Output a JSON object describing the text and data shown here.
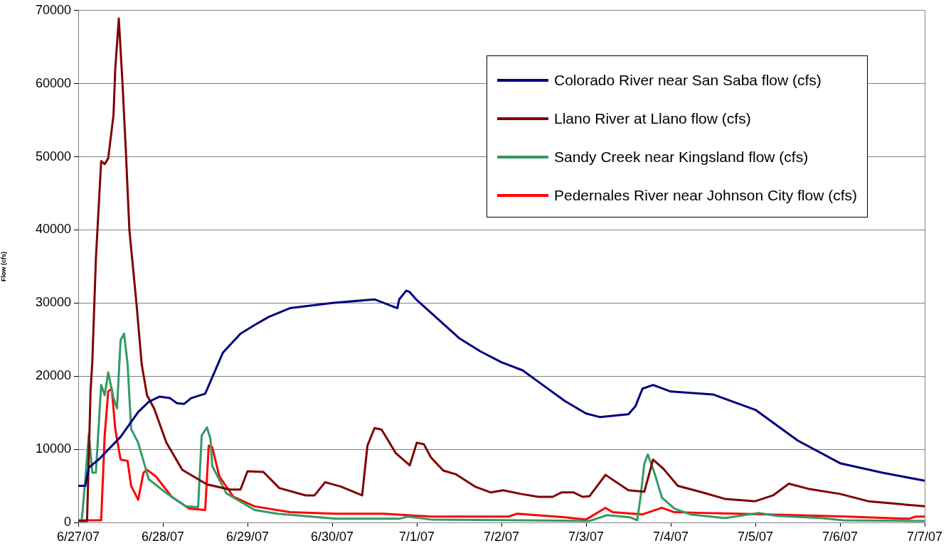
{
  "chart_data": {
    "type": "line",
    "ylabel": "Flow (cfs)",
    "xlim": [
      "--06-27",
      "--07-07"
    ],
    "xticks": [
      {
        "value": "--06-27",
        "label": "6/27/07"
      },
      {
        "value": "--06-28",
        "label": "6/28/07"
      },
      {
        "value": "--06-29",
        "label": "6/29/07"
      },
      {
        "value": "--06-30",
        "label": "6/30/07"
      },
      {
        "value": "--07-01",
        "label": "7/1/07"
      },
      {
        "value": "--07-02",
        "label": "7/2/07"
      },
      {
        "value": "--07-03",
        "label": "7/3/07"
      },
      {
        "value": "--07-04",
        "label": "7/4/07"
      },
      {
        "value": "--07-05",
        "label": "7/5/07"
      },
      {
        "value": "--07-06",
        "label": "7/6/07"
      },
      {
        "value": "--07-07",
        "label": "7/7/07"
      }
    ],
    "ylim": [
      0,
      70000
    ],
    "yticks": [
      0,
      10000,
      20000,
      30000,
      40000,
      50000,
      60000,
      70000
    ],
    "grid": "y",
    "legend": "top right",
    "line_style": "solid",
    "series": [
      {
        "name": "Colorado River near San Saba flow (cfs)",
        "color": "#000080",
        "x": [
          "--06-27T00:00",
          "--06-27T02:00",
          "--06-27T03:00",
          "--06-27T06:00",
          "--06-27T12:00",
          "--06-27T17:00",
          "--06-27T20:00",
          "--06-27T23:00",
          "--06-28T02:00",
          "--06-28T04:00",
          "--06-28T06:00",
          "--06-28T08:00",
          "--06-28T12:00",
          "--06-28T17:00",
          "--06-28T22:00",
          "--06-29T02:00",
          "--06-29T06:00",
          "--06-29T12:00",
          "--06-30T00:00",
          "--06-30T12:00",
          "--06-30T18:30",
          "--06-30T19:00",
          "--06-30T21:00",
          "--06-30T22:00",
          "--07-01T00:00",
          "--07-01T06:00",
          "--07-01T12:00",
          "--07-01T18:00",
          "--07-02T00:00",
          "--07-02T06:00",
          "--07-02T12:00",
          "--07-02T18:00",
          "--07-03T00:00",
          "--07-03T04:00",
          "--07-03T12:00",
          "--07-03T14:00",
          "--07-03T16:00",
          "--07-03T19:00",
          "--07-04T00:00",
          "--07-04T12:00",
          "--07-05T00:00",
          "--07-05T12:00",
          "--07-06T00:00",
          "--07-06T12:00",
          "--07-07T00:00"
        ],
        "values": [
          5000,
          5000,
          7500,
          8700,
          11700,
          15100,
          16500,
          17200,
          17000,
          16300,
          16200,
          17000,
          17600,
          23200,
          25800,
          27000,
          28100,
          29300,
          30000,
          30500,
          29300,
          30500,
          31700,
          31500,
          30400,
          27800,
          25200,
          23400,
          21900,
          20800,
          18700,
          16600,
          14900,
          14400,
          14800,
          15900,
          18300,
          18800,
          17900,
          17500,
          15400,
          11200,
          8100,
          6800,
          5700
        ]
      },
      {
        "name": "Llano River at Llano flow (cfs)",
        "color": "#800000",
        "x": [
          "--06-27T00:00",
          "--06-27T02:30",
          "--06-27T03:30",
          "--06-27T04:00",
          "--06-27T05:00",
          "--06-27T06:30",
          "--06-27T07:30",
          "--06-27T08:30",
          "--06-27T10:00",
          "--06-27T10:30",
          "--06-27T11:30",
          "--06-27T12:30",
          "--06-27T13:30",
          "--06-27T14:30",
          "--06-27T16:30",
          "--06-27T18:00",
          "--06-27T19:30",
          "--06-27T21:30",
          "--06-28T01:00",
          "--06-28T05:30",
          "--06-28T12:30",
          "--06-28T19:00",
          "--06-28T22:00",
          "--06-29T00:00",
          "--06-29T04:30",
          "--06-29T09:00",
          "--06-29T16:30",
          "--06-29T19:00",
          "--06-29T22:00",
          "--06-30T02:30",
          "--06-30T08:30",
          "--06-30T10:00",
          "--06-30T12:00",
          "--06-30T14:00",
          "--06-30T18:00",
          "--06-30T22:00",
          "--07-01T00:00",
          "--07-01T02:00",
          "--07-01T04:00",
          "--07-01T07:30",
          "--07-01T11:00",
          "--07-01T16:30",
          "--07-01T21:00",
          "--07-02T00:30",
          "--07-02T05:30",
          "--07-02T10:30",
          "--07-02T14:30",
          "--07-02T17:00",
          "--07-02T20:30",
          "--07-02T23:00",
          "--07-03T01:00",
          "--07-03T05:30",
          "--07-03T12:00",
          "--07-03T16:30",
          "--07-03T19:00",
          "--07-03T22:00",
          "--07-04T02:00",
          "--07-04T09:00",
          "--07-04T15:30",
          "--07-05T00:00",
          "--07-05T05:00",
          "--07-05T09:30",
          "--07-05T15:00",
          "--07-06T00:00",
          "--07-06T08:00",
          "--07-07T00:00"
        ],
        "values": [
          200,
          200,
          18000,
          22000,
          36000,
          49400,
          49000,
          49800,
          55700,
          62000,
          68900,
          60500,
          50800,
          40000,
          30000,
          21600,
          17400,
          15600,
          10900,
          7200,
          5200,
          4500,
          4500,
          7000,
          6900,
          4700,
          3700,
          3700,
          5500,
          4900,
          3700,
          10500,
          12900,
          12700,
          9500,
          7800,
          10900,
          10700,
          8900,
          7100,
          6600,
          4900,
          4100,
          4400,
          3900,
          3500,
          3500,
          4100,
          4100,
          3500,
          3600,
          6500,
          4400,
          4200,
          8600,
          7300,
          5000,
          4100,
          3200,
          2900,
          3700,
          5300,
          4600,
          3900,
          2900,
          2200
        ]
      },
      {
        "name": "Sandy Creek near Kingsland flow (cfs)",
        "color": "#339966",
        "x": [
          "--06-27T00:00",
          "--06-27T01:00",
          "--06-27T02:00",
          "--06-27T03:00",
          "--06-27T04:00",
          "--06-27T05:00",
          "--06-27T06:30",
          "--06-27T07:30",
          "--06-27T08:30",
          "--06-27T10:00",
          "--06-27T11:00",
          "--06-27T12:00",
          "--06-27T13:00",
          "--06-27T14:00",
          "--06-27T15:00",
          "--06-27T17:00",
          "--06-27T20:00",
          "--06-28T01:00",
          "--06-28T06:30",
          "--06-28T10:00",
          "--06-28T11:00",
          "--06-28T12:30",
          "--06-28T13:30",
          "--06-28T14:00",
          "--06-28T18:00",
          "--06-29T02:00",
          "--06-29T08:30",
          "--06-30T01:00",
          "--06-30T19:00",
          "--06-30T21:30",
          "--07-01T04:00",
          "--07-03T01:00",
          "--07-03T06:00",
          "--07-03T12:30",
          "--07-03T14:30",
          "--07-03T15:30",
          "--07-03T16:30",
          "--07-03T17:30",
          "--07-03T19:30",
          "--07-03T21:30",
          "--07-04T01:00",
          "--07-04T05:30",
          "--07-04T15:30",
          "--07-05T01:00",
          "--07-05T06:00",
          "--07-05T18:30",
          "--07-06T01:00",
          "--07-07T00:00"
        ],
        "values": [
          200,
          300,
          5800,
          12100,
          6800,
          6800,
          18800,
          17400,
          20500,
          17000,
          15600,
          24900,
          25800,
          21600,
          12800,
          10900,
          5900,
          4000,
          2200,
          2100,
          11900,
          13000,
          11400,
          7700,
          4000,
          1700,
          1200,
          500,
          500,
          800,
          400,
          200,
          1000,
          700,
          300,
          3700,
          8000,
          9300,
          6600,
          3400,
          1900,
          1100,
          600,
          1300,
          900,
          600,
          300,
          200
        ]
      },
      {
        "name": "Pedernales River near Johnson City flow (cfs)",
        "color": "#ff0000",
        "x": [
          "--06-27T00:00",
          "--06-27T06:30",
          "--06-27T07:30",
          "--06-27T08:30",
          "--06-27T09:30",
          "--06-27T10:30",
          "--06-27T12:00",
          "--06-27T14:00",
          "--06-27T15:00",
          "--06-27T17:00",
          "--06-27T18:30",
          "--06-27T19:30",
          "--06-27T22:00",
          "--06-28T02:30",
          "--06-28T07:30",
          "--06-28T12:00",
          "--06-28T13:00",
          "--06-28T14:00",
          "--06-28T16:00",
          "--06-28T20:00",
          "--06-29T02:00",
          "--06-29T12:00",
          "--06-30T01:00",
          "--06-30T14:30",
          "--07-01T04:00",
          "--07-02T02:00",
          "--07-02T04:30",
          "--07-02T18:00",
          "--07-03T00:00",
          "--07-03T05:30",
          "--07-03T07:30",
          "--07-03T16:00",
          "--07-03T21:30",
          "--07-04T01:00",
          "--07-04T09:00",
          "--07-05T03:30",
          "--07-06T02:00",
          "--07-06T19:30",
          "--07-06T21:30",
          "--07-07T00:00"
        ],
        "values": [
          300,
          300,
          11900,
          17900,
          18300,
          12800,
          8600,
          8400,
          5000,
          3100,
          6800,
          7200,
          6300,
          3500,
          1900,
          1700,
          10500,
          10300,
          6300,
          3500,
          2200,
          1400,
          1200,
          1200,
          800,
          800,
          1200,
          700,
          400,
          2000,
          1400,
          1100,
          2000,
          1400,
          1300,
          1100,
          800,
          500,
          800,
          800
        ]
      }
    ]
  }
}
